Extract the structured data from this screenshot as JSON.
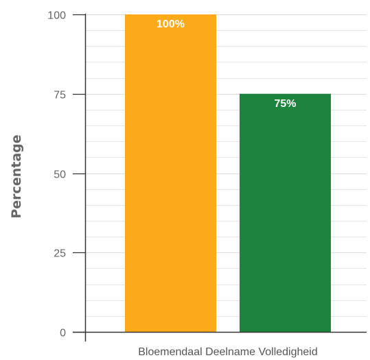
{
  "chart_data": {
    "type": "bar",
    "title": "",
    "xlabel": "",
    "ylabel": "Percentage",
    "ylim": [
      0,
      100
    ],
    "yticks": [
      0,
      25,
      50,
      75,
      100
    ],
    "categories": [
      "Bloemendaal Deelname Volledigheid"
    ],
    "series": [
      {
        "color": "#FBAA19",
        "values": [
          100
        ],
        "labels": [
          "100%"
        ]
      },
      {
        "color": "#1E843D",
        "values": [
          75
        ],
        "labels": [
          "75%"
        ]
      }
    ],
    "grid": true,
    "legend": "none",
    "colors": {
      "grid": "#e6e6e6",
      "axis": "#333333",
      "tick_label": "#666666",
      "data_label": "#ffffff"
    }
  }
}
